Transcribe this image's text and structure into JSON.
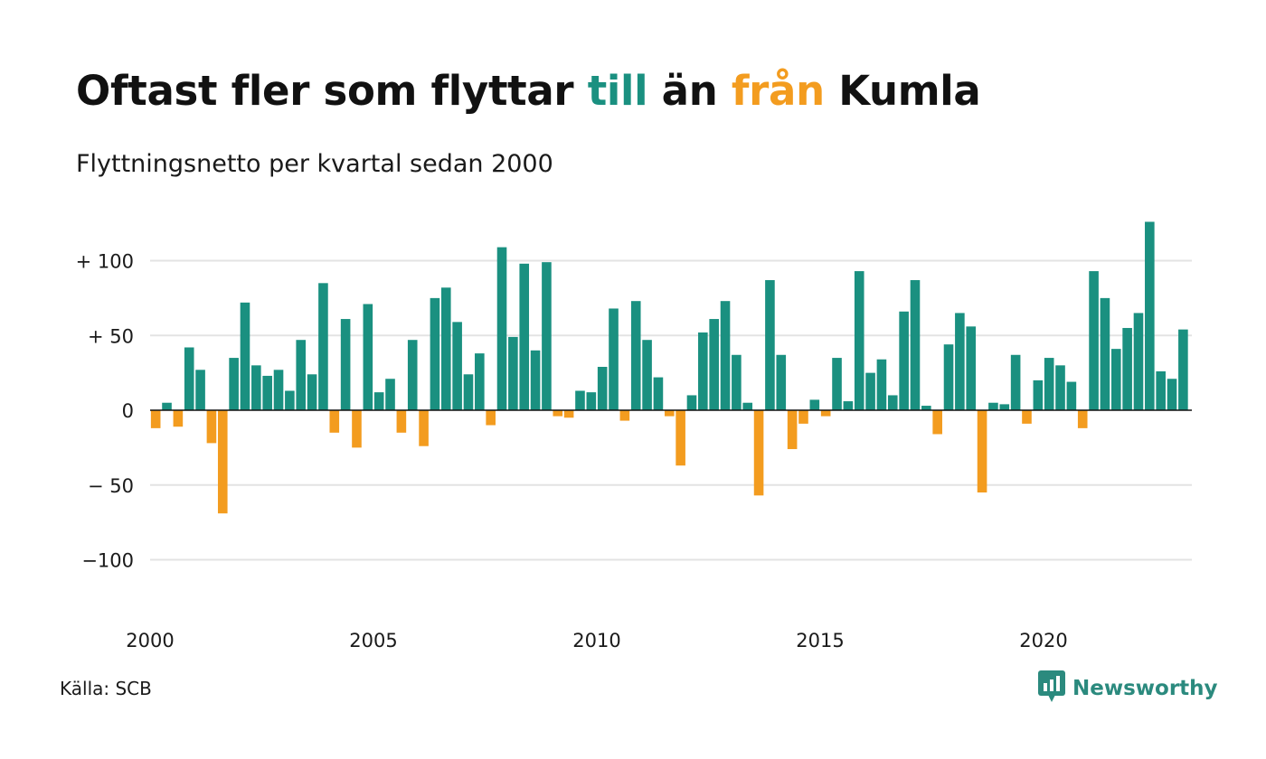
{
  "title": {
    "part1": "Oftast fler som flyttar ",
    "pos_word": "till",
    "part2": " än ",
    "neg_word": "från",
    "part3": " Kumla"
  },
  "subtitle": "Flyttningsnetto per kvartal sedan 2000",
  "source": "Källa: SCB",
  "brand": {
    "name": "Newsworthy",
    "icon": "newsworthy-logo-icon"
  },
  "colors": {
    "positive": "#1a9080",
    "negative": "#f39c1f",
    "grid": "#e3e3e3",
    "axis": "#111111",
    "brand": "#2b8a7e"
  },
  "chart_data": {
    "type": "bar",
    "title": "Flyttningsnetto per kvartal sedan 2000",
    "xlabel": "",
    "ylabel": "",
    "x_start_year": 2000,
    "periods_per_year": 4,
    "ylim": [
      -130,
      130
    ],
    "yticks": [
      -100,
      -50,
      0,
      50,
      100
    ],
    "ytick_labels": [
      "−100",
      "− 50",
      "0",
      "+  50",
      "+ 100"
    ],
    "xticks": [
      2000,
      2005,
      2010,
      2015,
      2020
    ],
    "xtick_labels": [
      "2000",
      "2005",
      "2010",
      "2015",
      "2020"
    ],
    "grid": true,
    "legend": "none",
    "values": [
      -12,
      5,
      -11,
      42,
      27,
      -22,
      -69,
      35,
      72,
      30,
      23,
      27,
      13,
      47,
      24,
      85,
      -15,
      61,
      -25,
      71,
      12,
      21,
      -15,
      47,
      -24,
      75,
      82,
      59,
      24,
      38,
      -10,
      109,
      49,
      98,
      40,
      99,
      -4,
      -5,
      13,
      12,
      29,
      68,
      -7,
      73,
      47,
      22,
      -4,
      -37,
      10,
      52,
      61,
      73,
      37,
      5,
      -57,
      87,
      37,
      -26,
      -9,
      7,
      -4,
      35,
      6,
      93,
      25,
      34,
      10,
      66,
      87,
      3,
      -16,
      44,
      65,
      56,
      -55,
      5,
      4,
      37,
      -9,
      20,
      35,
      30,
      19,
      -12,
      93,
      75,
      41,
      55,
      65,
      126,
      26,
      21,
      54
    ]
  }
}
